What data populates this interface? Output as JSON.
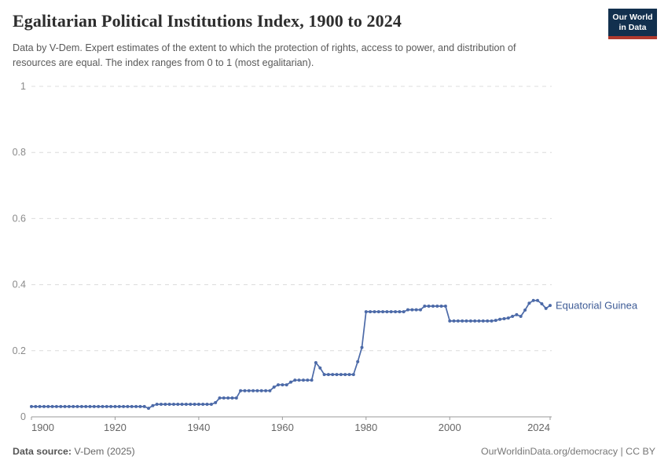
{
  "header": {
    "title": "Egalitarian Political Institutions Index, 1900 to 2024",
    "subtitle": "Data by V-Dem. Expert estimates of the extent to which the protection of rights, access to power, and distribution of resources are equal. The index ranges from 0 to 1 (most egalitarian).",
    "logo": {
      "line1": "Our World",
      "line2": "in Data",
      "bg_color": "#12304e",
      "accent_color": "#b03a2e"
    }
  },
  "chart_data": {
    "type": "line",
    "title": "Egalitarian Political Institutions Index, 1900 to 2024",
    "entity_label": "Equatorial Guinea",
    "line_color": "#4c6aa8",
    "grid": "horizontal dashed",
    "legend_position": "end-of-line label",
    "xlim": [
      1900,
      2024
    ],
    "ylim": [
      0,
      1
    ],
    "x_ticks": [
      1900,
      1920,
      1940,
      1960,
      1980,
      2000,
      2024
    ],
    "y_ticks": [
      0,
      0.2,
      0.4,
      0.6,
      0.8,
      1
    ],
    "x_start": 1900,
    "x_end": 2024,
    "series": [
      {
        "name": "Equatorial Guinea",
        "values": [
          0.031,
          0.031,
          0.031,
          0.031,
          0.031,
          0.031,
          0.031,
          0.031,
          0.031,
          0.031,
          0.031,
          0.031,
          0.031,
          0.031,
          0.031,
          0.031,
          0.031,
          0.031,
          0.031,
          0.031,
          0.031,
          0.031,
          0.031,
          0.031,
          0.031,
          0.031,
          0.031,
          0.031,
          0.026,
          0.034,
          0.038,
          0.038,
          0.038,
          0.038,
          0.038,
          0.038,
          0.038,
          0.038,
          0.038,
          0.038,
          0.038,
          0.038,
          0.038,
          0.038,
          0.043,
          0.057,
          0.057,
          0.057,
          0.057,
          0.057,
          0.079,
          0.079,
          0.079,
          0.079,
          0.079,
          0.079,
          0.079,
          0.079,
          0.09,
          0.097,
          0.097,
          0.097,
          0.105,
          0.111,
          0.111,
          0.111,
          0.111,
          0.111,
          0.164,
          0.148,
          0.128,
          0.128,
          0.128,
          0.128,
          0.128,
          0.128,
          0.128,
          0.128,
          0.167,
          0.21,
          0.318,
          0.318,
          0.318,
          0.318,
          0.318,
          0.318,
          0.318,
          0.318,
          0.318,
          0.318,
          0.324,
          0.324,
          0.324,
          0.324,
          0.335,
          0.335,
          0.335,
          0.335,
          0.335,
          0.335,
          0.29,
          0.29,
          0.29,
          0.29,
          0.29,
          0.29,
          0.29,
          0.29,
          0.29,
          0.29,
          0.29,
          0.292,
          0.295,
          0.297,
          0.299,
          0.304,
          0.309,
          0.304,
          0.323,
          0.344,
          0.352,
          0.352,
          0.342,
          0.328,
          0.337
        ]
      }
    ]
  },
  "footer": {
    "source_label": "Data source:",
    "source_value": " V-Dem (2025)",
    "link": "OurWorldinData.org/democracy | CC BY"
  },
  "colors": {
    "gridline": "#dcdcdc",
    "axis": "#9a9a9a",
    "y_tick_label": "#8a8a8a",
    "x_tick_label": "#666666",
    "entity_label": "#3d5b96"
  }
}
